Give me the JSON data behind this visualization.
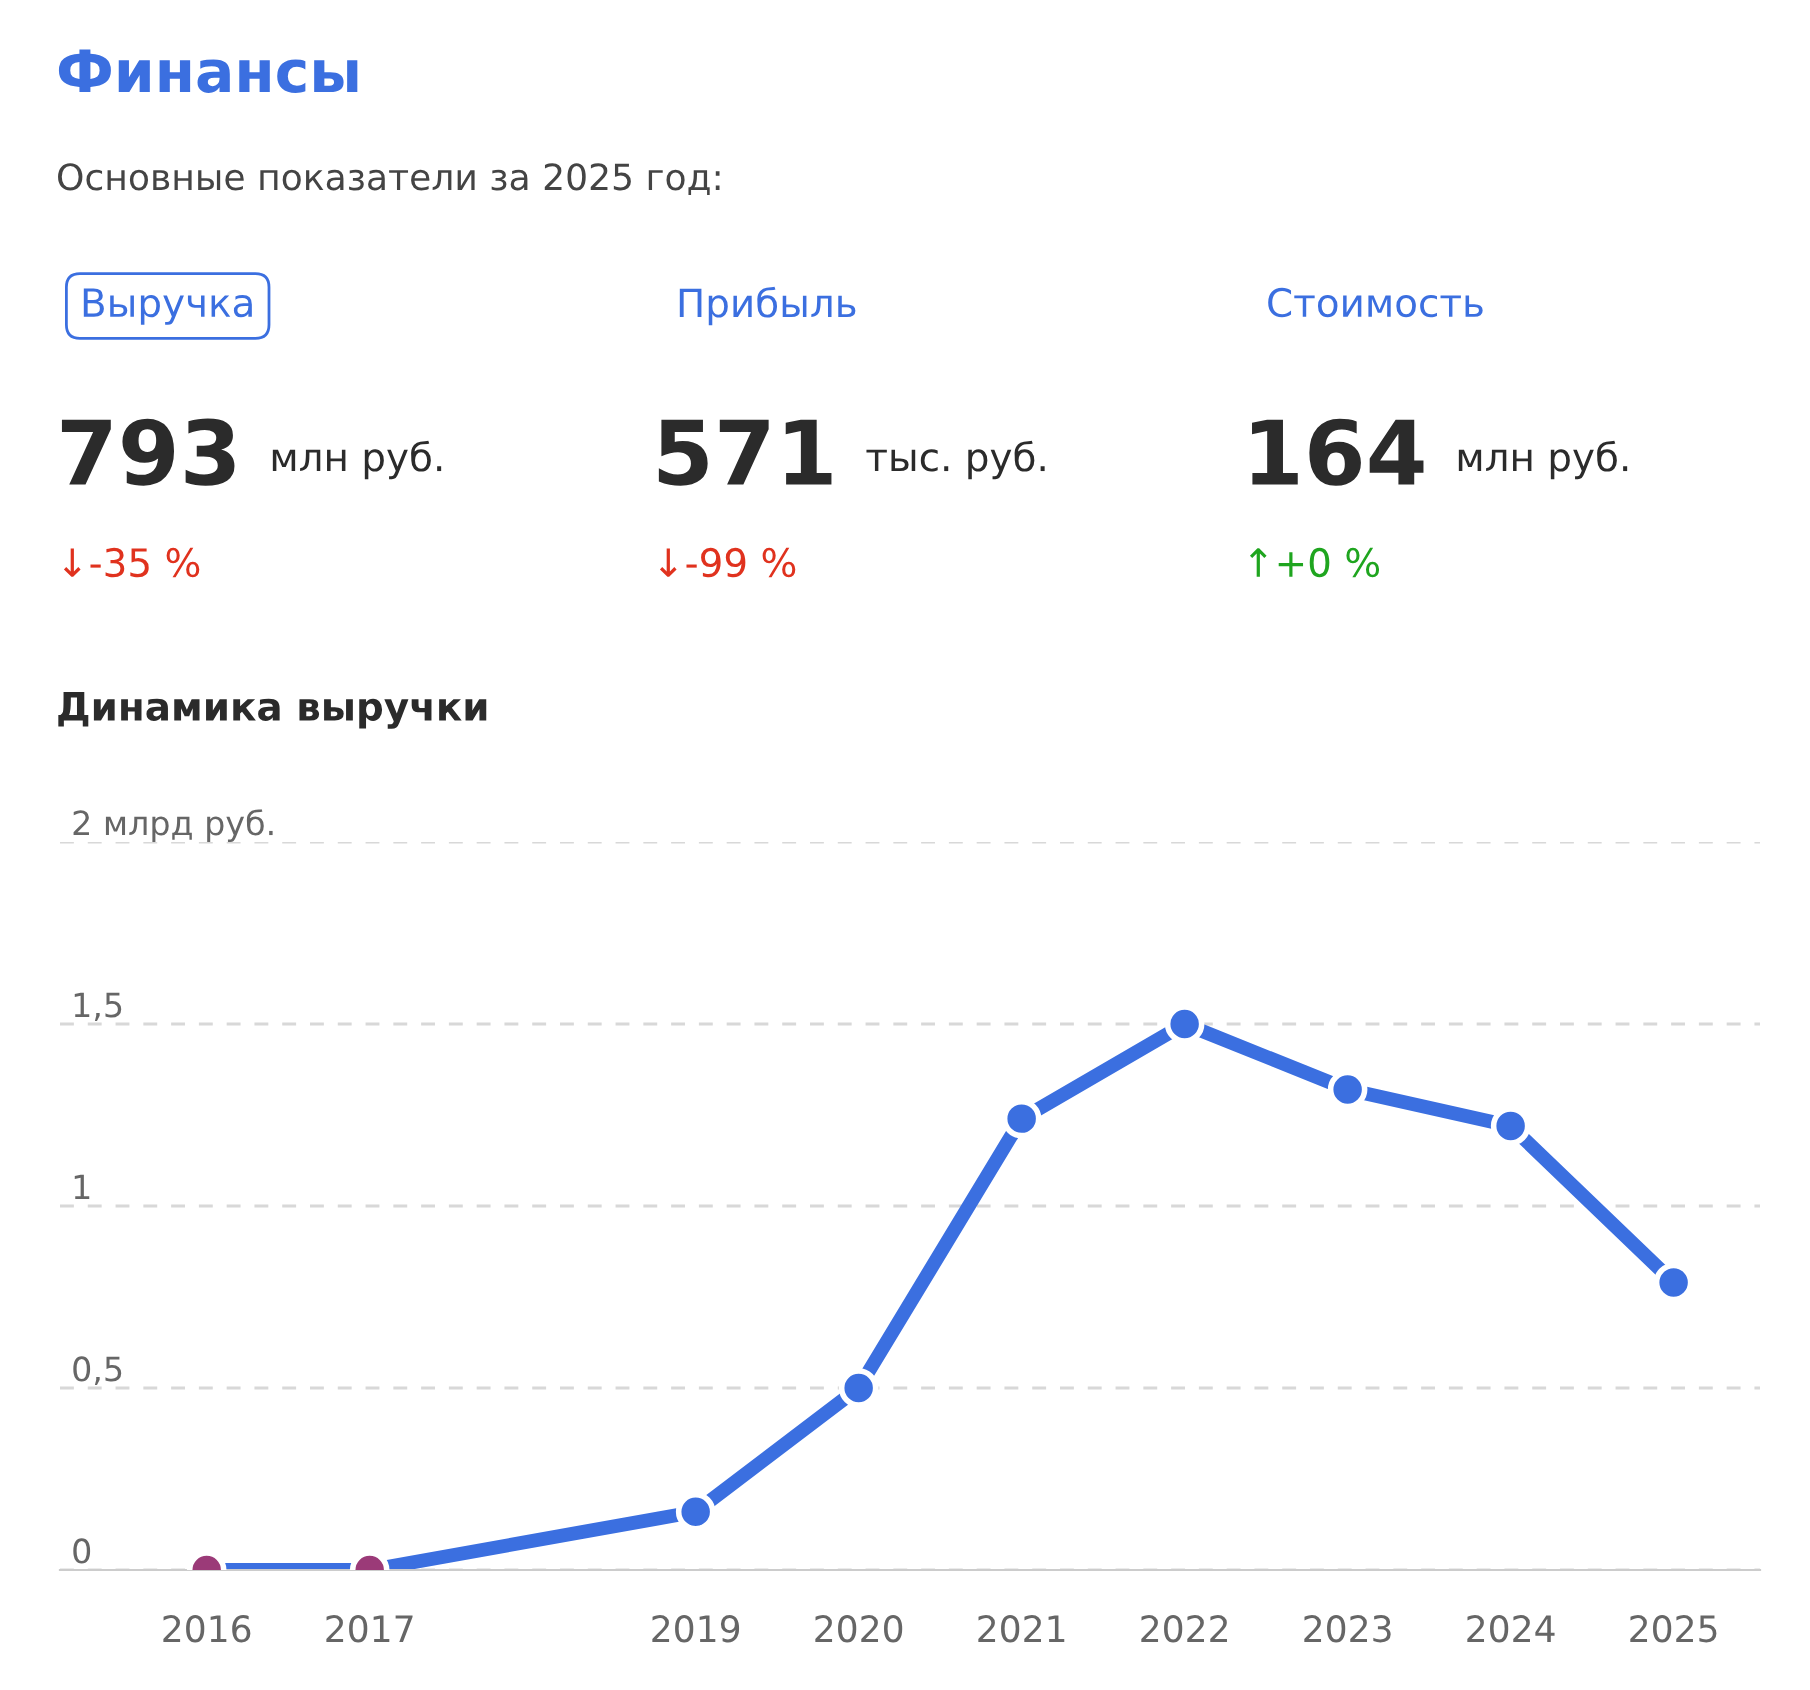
{
  "chart_data": [
    {
      "type": "other",
      "title": "Финансы",
      "subtitle": "Основные показатели за 2025 год:",
      "annotations": [
        "Выручка",
        "793",
        "млн руб.",
        "↓-35 %",
        "Прибыль",
        "571",
        "тыс. руб.",
        "↓-99 %",
        "Стоимость",
        "164",
        "млн руб.",
        "↑+0 %"
      ],
      "colors": [
        "#3b6fe0",
        "#2b2b2b",
        "#2b2b2b",
        "#e0321e",
        "#3b6fe0",
        "#2b2b2b",
        "#2b2b2b",
        "#e0321e",
        "#3b6fe0",
        "#2b2b2b",
        "#2b2b2b",
        "#1fa51f"
      ]
    },
    {
      "type": "line",
      "title": "Динамика выручки",
      "x": [
        2016,
        2017,
        2019,
        2020,
        2021,
        2022,
        2023,
        2024,
        2025
      ],
      "series": [
        {
          "color": "#3b6fe0",
          "values": [
            0,
            0,
            0.16,
            0.5,
            1.24,
            1.5,
            1.32,
            1.22,
            0.79
          ],
          "colors": [
            "#9b3a78",
            "#9b3a78",
            "#3b6fe0",
            "#3b6fe0",
            "#3b6fe0",
            "#3b6fe0",
            "#3b6fe0",
            "#3b6fe0",
            "#3b6fe0"
          ]
        }
      ],
      "xlim": [
        2015.1,
        2025.53
      ],
      "xticks": [
        2016,
        2017,
        2019,
        2020,
        2021,
        2022,
        2023,
        2024,
        2025
      ],
      "ylim": [
        0,
        2
      ],
      "yticks": [
        {
          "value": 0,
          "label": "0"
        },
        {
          "value": 0.5,
          "label": "0,5"
        },
        {
          "value": 1,
          "label": "1"
        },
        {
          "value": 1.5,
          "label": "1,5"
        },
        {
          "value": 2,
          "label": "2 млрд руб."
        }
      ],
      "grid": "y",
      "marker": "circle",
      "line_style": "solid"
    }
  ]
}
